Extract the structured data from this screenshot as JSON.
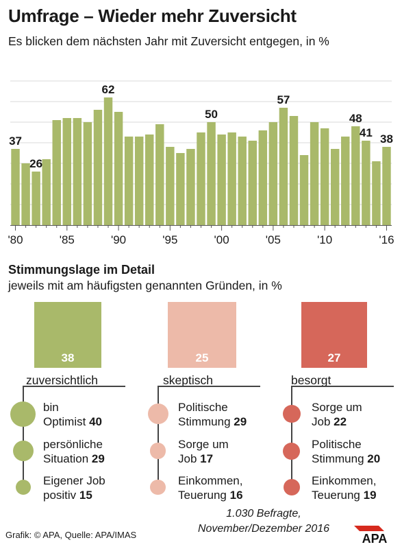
{
  "title": "Umfrage – Wieder mehr Zuversicht",
  "subtitle": "Es blicken dem nächsten Jahr mit Zuversicht entgegen, in %",
  "chart_data": {
    "type": "bar",
    "x": [
      1980,
      1981,
      1982,
      1983,
      1984,
      1985,
      1986,
      1987,
      1988,
      1989,
      1990,
      1991,
      1992,
      1993,
      1994,
      1995,
      1996,
      1997,
      1998,
      1999,
      2000,
      2001,
      2002,
      2003,
      2004,
      2005,
      2006,
      2007,
      2008,
      2009,
      2010,
      2011,
      2012,
      2013,
      2014,
      2015,
      2016
    ],
    "values": [
      37,
      30,
      26,
      32,
      51,
      52,
      52,
      50,
      56,
      62,
      55,
      43,
      43,
      44,
      49,
      38,
      35,
      37,
      45,
      50,
      44,
      45,
      43,
      41,
      46,
      50,
      57,
      53,
      34,
      50,
      47,
      37,
      43,
      48,
      41,
      31,
      38
    ],
    "data_labels": [
      {
        "x": 1980,
        "text": "37"
      },
      {
        "x": 1982,
        "text": "26"
      },
      {
        "x": 1989,
        "text": "62"
      },
      {
        "x": 1999,
        "text": "50"
      },
      {
        "x": 2006,
        "text": "57"
      },
      {
        "x": 2013,
        "text": "48"
      },
      {
        "x": 2014,
        "text": "41"
      },
      {
        "x": 2016,
        "text": "38"
      }
    ],
    "tick_labels": [
      "'80",
      "'85",
      "'90",
      "'95",
      "'00",
      "'05",
      "'10",
      "'16"
    ],
    "tick_years": [
      1980,
      1985,
      1990,
      1995,
      2000,
      2005,
      2010,
      2016
    ],
    "ylim": [
      0,
      70
    ],
    "grid": true,
    "bar_color": "#a9b96a"
  },
  "detail": {
    "title": "Stimmungslage im Detail",
    "subtitle": "jeweils mit am häufigsten genannten Gründen, in %",
    "groups": [
      {
        "label": "zuversichtlich",
        "value": 38,
        "value_text": "38",
        "color": "#a9b96a",
        "reasons": [
          {
            "line1": "bin",
            "line2": "Optimist",
            "value": 40,
            "value_text": "40"
          },
          {
            "line1": "persönliche",
            "line2": "Situation",
            "value": 29,
            "value_text": "29"
          },
          {
            "line1": "Eigener Job",
            "line2": "positiv",
            "value": 15,
            "value_text": "15"
          }
        ]
      },
      {
        "label": "skeptisch",
        "value": 25,
        "value_text": "25",
        "color": "#edbaa9",
        "reasons": [
          {
            "line1": "Politische",
            "line2": "Stimmung",
            "value": 29,
            "value_text": "29"
          },
          {
            "line1": "Sorge um",
            "line2": "Job",
            "value": 17,
            "value_text": "17"
          },
          {
            "line1": "Einkommen,",
            "line2": "Teuerung",
            "value": 16,
            "value_text": "16"
          }
        ]
      },
      {
        "label": "besorgt",
        "value": 27,
        "value_text": "27",
        "color": "#d6675a",
        "reasons": [
          {
            "line1": "Sorge um",
            "line2": "Job",
            "value": 22,
            "value_text": "22"
          },
          {
            "line1": "Politische",
            "line2": "Stimmung",
            "value": 20,
            "value_text": "20"
          },
          {
            "line1": "Einkommen,",
            "line2": "Teuerung",
            "value": 19,
            "value_text": "19"
          }
        ]
      }
    ]
  },
  "footer": {
    "source": "Grafik: © APA, Quelle: APA/IMAS",
    "note_line1": "1.030 Befragte,",
    "note_line2": "November/Dezember 2016",
    "logo_text": "APA"
  }
}
